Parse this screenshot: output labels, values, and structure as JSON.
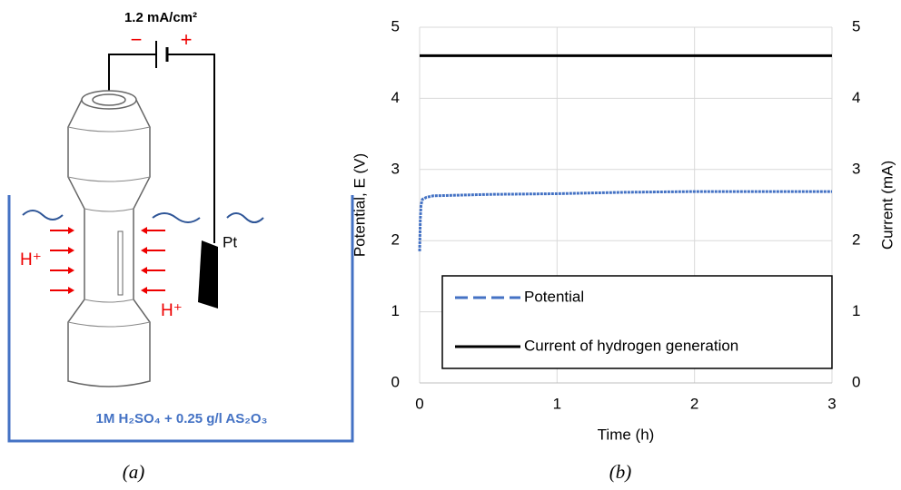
{
  "diagram": {
    "battery_label": "1.2 mA/cm²",
    "minus": "−",
    "plus": "+",
    "electrode": "Pt",
    "ion_left": "H⁺",
    "ion_right": "H⁺",
    "solution": "1M H₂SO₄ + 0.25 g/l AS₂O₃",
    "caption": "(a)"
  },
  "chart_data": {
    "type": "line",
    "caption": "(b)",
    "x_label": "Time (h)",
    "y_label": "Potential, E (V)",
    "y2_label": "Current (mA)",
    "xlim": [
      0,
      3
    ],
    "xticks": [
      0,
      1,
      2,
      3
    ],
    "ylim": [
      0,
      5
    ],
    "yticks": [
      0,
      1,
      2,
      3,
      4,
      5
    ],
    "y2lim": [
      0,
      5
    ],
    "y2ticks": [
      0,
      1,
      2,
      3,
      4,
      5
    ],
    "grid": true,
    "legend": "lower right",
    "series": [
      {
        "name": "Potential",
        "color": "#4472c4",
        "style": "dashed",
        "x": [
          0,
          0.005,
          0.01,
          0.02,
          0.05,
          0.1,
          0.3,
          0.5,
          1,
          1.5,
          2,
          2.5,
          3
        ],
        "values": [
          1.85,
          2.3,
          2.5,
          2.58,
          2.61,
          2.63,
          2.64,
          2.65,
          2.66,
          2.68,
          2.69,
          2.69,
          2.69
        ]
      },
      {
        "name": "Current of hydrogen generation",
        "color": "#000000",
        "style": "solid",
        "axis": "y2",
        "x": [
          0,
          3
        ],
        "values": [
          4.6,
          4.6
        ]
      }
    ]
  }
}
